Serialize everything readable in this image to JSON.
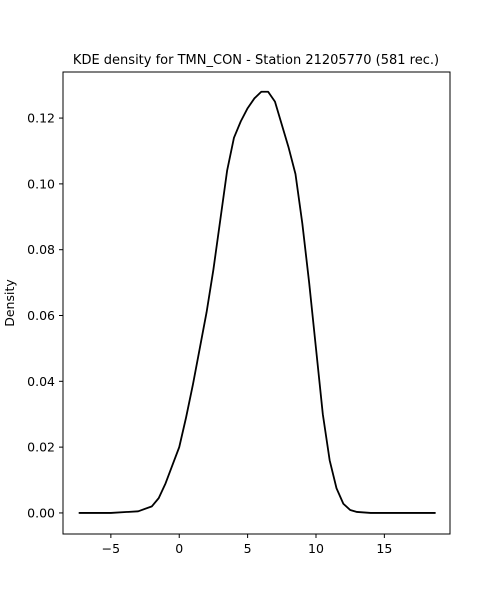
{
  "chart_data": {
    "type": "line",
    "title": "KDE density for TMN_CON - Station 21205770 (581 rec.)",
    "xlabel": "",
    "ylabel": "Density",
    "xlim": [
      -8.5,
      19.8
    ],
    "ylim": [
      -0.0064,
      0.134
    ],
    "grid": false,
    "xticks": [
      -5,
      0,
      5,
      10,
      15
    ],
    "xtick_labels": [
      "−5",
      "0",
      "5",
      "10",
      "15"
    ],
    "yticks": [
      0.0,
      0.02,
      0.04,
      0.06,
      0.08,
      0.1,
      0.12
    ],
    "ytick_labels": [
      "0.00",
      "0.02",
      "0.04",
      "0.06",
      "0.08",
      "0.10",
      "0.12"
    ],
    "line_color": "#000000",
    "series": [
      {
        "x": [
          -7.3,
          -5,
          -3,
          -2,
          -1.5,
          -1,
          -0.5,
          0,
          0.5,
          1,
          1.5,
          2,
          2.5,
          3,
          3.5,
          4,
          4.5,
          5,
          5.5,
          6,
          6.5,
          7,
          7.5,
          8,
          8.5,
          9,
          9.5,
          10,
          10.5,
          11,
          11.5,
          12,
          12.5,
          13,
          14,
          16,
          18.7
        ],
        "y": [
          0.0,
          0.0,
          0.0005,
          0.002,
          0.0045,
          0.009,
          0.0145,
          0.02,
          0.029,
          0.039,
          0.05,
          0.061,
          0.074,
          0.089,
          0.104,
          0.114,
          0.119,
          0.123,
          0.126,
          0.128,
          0.128,
          0.125,
          0.118,
          0.111,
          0.103,
          0.088,
          0.07,
          0.05,
          0.03,
          0.016,
          0.0075,
          0.0028,
          0.0009,
          0.0003,
          0.0,
          0.0,
          0.0
        ]
      }
    ]
  }
}
